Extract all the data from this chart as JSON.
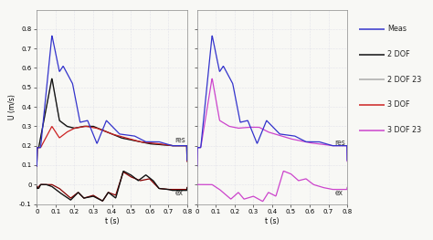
{
  "ylabel": "U (m/s)",
  "xlabel": "t (s)",
  "xlim": [
    0,
    0.8
  ],
  "ylim": [
    -0.1,
    0.9
  ],
  "yticks": [
    -0.1,
    0,
    0.1,
    0.2,
    0.3,
    0.4,
    0.5,
    0.6,
    0.7,
    0.8
  ],
  "xticks": [
    0,
    0.1,
    0.2,
    0.3,
    0.4,
    0.5,
    0.6,
    0.7,
    0.8
  ],
  "legend_labels": [
    "Meas",
    "2 DOF",
    "2 DOF 23",
    "3 DOF",
    "3 DOF 23"
  ],
  "legend_colors": [
    "#3333cc",
    "#111111",
    "#aaaaaa",
    "#cc2222",
    "#cc44cc"
  ],
  "bg_color": "#f8f8f5",
  "grid_color": "#d0d0e0",
  "res_label": "res",
  "ex_label": "ex"
}
